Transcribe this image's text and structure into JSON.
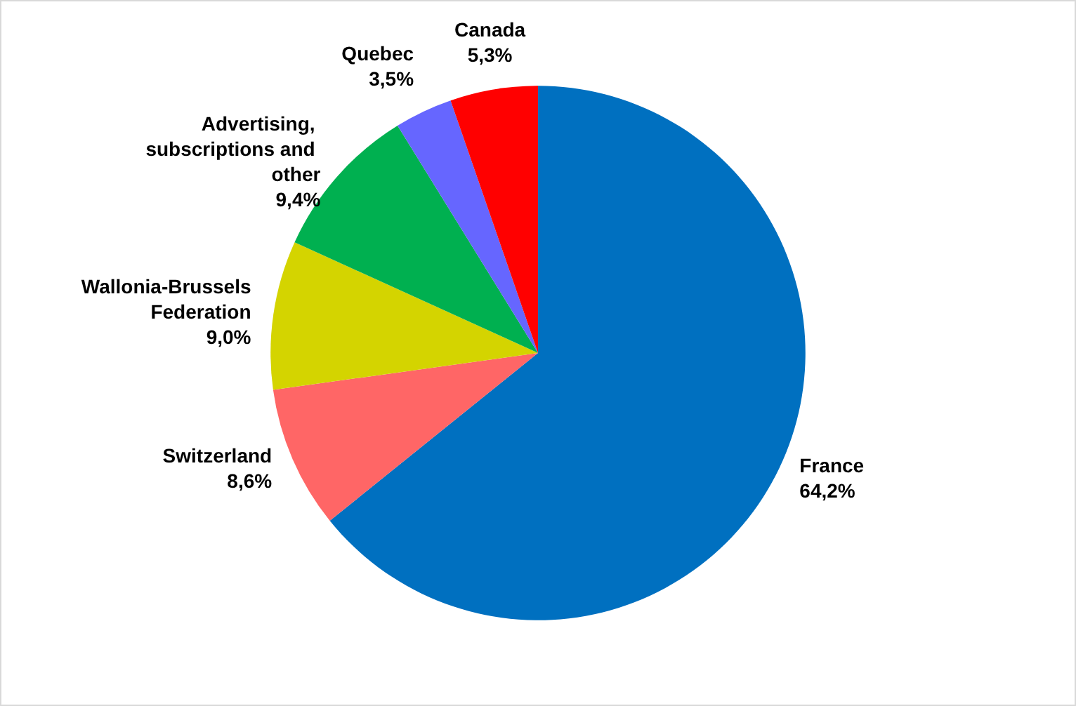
{
  "chart_data": {
    "type": "pie",
    "categories": [
      "France",
      "Switzerland",
      "Wallonia-Brussels Federation",
      "Advertising, subscriptions and other",
      "Quebec",
      "Canada"
    ],
    "values": [
      64.2,
      8.6,
      9.0,
      9.4,
      3.5,
      5.3
    ],
    "colors": [
      "#0070c0",
      "#ff6666",
      "#d4d400",
      "#00b050",
      "#6666ff",
      "#ff0000"
    ],
    "value_labels": [
      "64,2%",
      "8,6%",
      "9,0%",
      "9,4%",
      "3,5%",
      "5,3%"
    ],
    "legend": false
  }
}
